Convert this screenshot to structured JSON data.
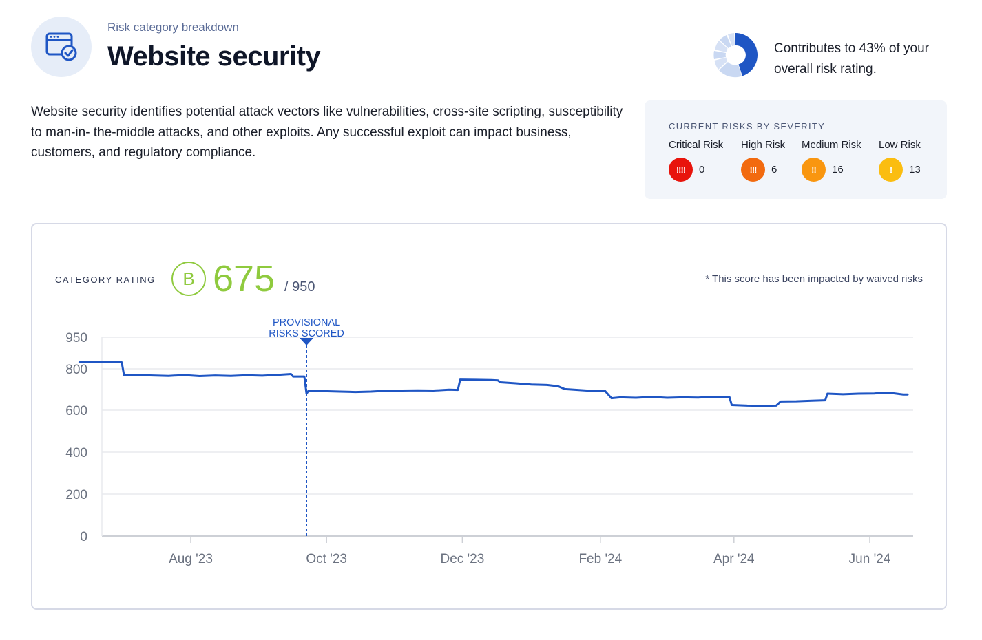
{
  "header": {
    "eyebrow": "Risk category breakdown",
    "title": "Website security",
    "icon": "browser-check-icon"
  },
  "contribution": {
    "percent": 43,
    "text": "Contributes to 43% of your overall risk rating."
  },
  "description": "Website security identifies potential attack vectors like vulnerabilities, cross-site scripting, susceptibility to man-in- the-middle attacks, and other exploits. Any successful exploit can impact business, customers, and regulatory compliance.",
  "severity": {
    "heading": "CURRENT RISKS BY SEVERITY",
    "items": [
      {
        "label": "Critical Risk",
        "glyph": "!!!!",
        "count": "0",
        "color": "#e8140c"
      },
      {
        "label": "High Risk",
        "glyph": "!!!",
        "count": "6",
        "color": "#f26a0f"
      },
      {
        "label": "Medium Risk",
        "glyph": "!!",
        "count": "16",
        "color": "#f9960f"
      },
      {
        "label": "Low Risk",
        "glyph": "!",
        "count": "13",
        "color": "#fbbd10"
      }
    ]
  },
  "rating": {
    "label": "CATEGORY RATING",
    "grade": "B",
    "score": "675",
    "max": "/ 950",
    "note": "* This score has been impacted by waived risks",
    "accent": "#8fca3e"
  },
  "chart_data": {
    "type": "line",
    "line_color": "#1f56c4",
    "y_ticks": [
      950,
      800,
      600,
      400,
      200,
      0
    ],
    "x_ticks": [
      "Aug '23",
      "Oct '23",
      "Dec '23",
      "Feb '24",
      "Apr '24",
      "Jun '24"
    ],
    "annotation": {
      "label_line1": "PROVISIONAL",
      "label_line2": "RISKS SCORED",
      "date": "2023-09-22"
    },
    "series": [
      {
        "points": [
          [
            "2023-06-12",
            831
          ],
          [
            "2023-06-20",
            831
          ],
          [
            "2023-06-28",
            832
          ],
          [
            "2023-07-01",
            831
          ],
          [
            "2023-07-02",
            770
          ],
          [
            "2023-07-08",
            770
          ],
          [
            "2023-07-15",
            768
          ],
          [
            "2023-07-22",
            766
          ],
          [
            "2023-07-29",
            770
          ],
          [
            "2023-08-05",
            765
          ],
          [
            "2023-08-12",
            768
          ],
          [
            "2023-08-19",
            766
          ],
          [
            "2023-08-26",
            769
          ],
          [
            "2023-09-02",
            767
          ],
          [
            "2023-09-09",
            771
          ],
          [
            "2023-09-15",
            775
          ],
          [
            "2023-09-16",
            763
          ],
          [
            "2023-09-21",
            763
          ],
          [
            "2023-09-22",
            680
          ],
          [
            "2023-09-23",
            695
          ],
          [
            "2023-09-30",
            692
          ],
          [
            "2023-10-07",
            690
          ],
          [
            "2023-10-14",
            688
          ],
          [
            "2023-10-21",
            690
          ],
          [
            "2023-10-28",
            694
          ],
          [
            "2023-11-04",
            695
          ],
          [
            "2023-11-11",
            696
          ],
          [
            "2023-11-18",
            695
          ],
          [
            "2023-11-25",
            699
          ],
          [
            "2023-11-29",
            698
          ],
          [
            "2023-11-30",
            748
          ],
          [
            "2023-12-07",
            747
          ],
          [
            "2023-12-14",
            746
          ],
          [
            "2023-12-17",
            744
          ],
          [
            "2023-12-18",
            735
          ],
          [
            "2023-12-25",
            730
          ],
          [
            "2024-01-01",
            724
          ],
          [
            "2024-01-08",
            722
          ],
          [
            "2024-01-13",
            716
          ],
          [
            "2024-01-16",
            702
          ],
          [
            "2024-01-23",
            697
          ],
          [
            "2024-01-30",
            692
          ],
          [
            "2024-02-03",
            694
          ],
          [
            "2024-02-06",
            658
          ],
          [
            "2024-02-10",
            662
          ],
          [
            "2024-02-17",
            660
          ],
          [
            "2024-02-24",
            664
          ],
          [
            "2024-03-02",
            660
          ],
          [
            "2024-03-09",
            662
          ],
          [
            "2024-03-16",
            661
          ],
          [
            "2024-03-23",
            665
          ],
          [
            "2024-03-30",
            663
          ],
          [
            "2024-03-31",
            625
          ],
          [
            "2024-04-07",
            622
          ],
          [
            "2024-04-14",
            621
          ],
          [
            "2024-04-20",
            622
          ],
          [
            "2024-04-22",
            642
          ],
          [
            "2024-04-29",
            643
          ],
          [
            "2024-05-06",
            646
          ],
          [
            "2024-05-12",
            648
          ],
          [
            "2024-05-13",
            680
          ],
          [
            "2024-05-20",
            677
          ],
          [
            "2024-05-27",
            680
          ],
          [
            "2024-06-03",
            681
          ],
          [
            "2024-06-10",
            684
          ],
          [
            "2024-06-16",
            676
          ],
          [
            "2024-06-18",
            676
          ]
        ]
      }
    ]
  }
}
